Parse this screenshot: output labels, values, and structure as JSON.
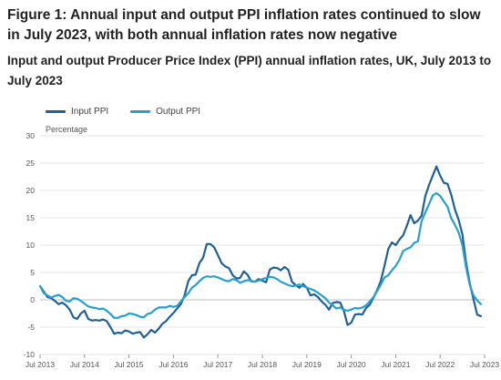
{
  "title": "Figure 1: Annual input and output PPI inflation rates continued to slow in July 2023, with both annual inflation rates now negative",
  "subtitle": "Input and output Producer Price Index (PPI) annual inflation rates, UK, July 2013 to July 2023",
  "chart_data": {
    "type": "line",
    "ylabel": "Percentage",
    "xlabel": "",
    "ylim": [
      -10,
      30
    ],
    "yticks": [
      30,
      25,
      20,
      15,
      10,
      5,
      0,
      -5,
      -10
    ],
    "xticks": [
      "Jul 2013",
      "Jul 2014",
      "Jul 2015",
      "Jul 2016",
      "Jul 2017",
      "Jul 2018",
      "Jul 2019",
      "Jul 2020",
      "Jul 2021",
      "Jul 2022",
      "Jul 2023"
    ],
    "grid": true,
    "legend": "top-left",
    "x_start": "Jul 2013",
    "x_frequency": "monthly",
    "series": [
      {
        "name": "Input PPI",
        "color": "#206095",
        "values": [
          2.5,
          1.5,
          0.5,
          0.3,
          -0.2,
          -0.8,
          -0.5,
          -1.0,
          -1.8,
          -3.2,
          -3.5,
          -2.5,
          -2.0,
          -3.5,
          -3.8,
          -3.7,
          -3.8,
          -3.6,
          -3.9,
          -5.0,
          -6.2,
          -6.0,
          -6.1,
          -5.6,
          -5.8,
          -6.2,
          -6.0,
          -5.9,
          -6.9,
          -6.3,
          -5.5,
          -6.0,
          -5.3,
          -4.4,
          -3.9,
          -3.1,
          -2.4,
          -1.6,
          -0.8,
          0.8,
          3.4,
          4.5,
          4.6,
          6.7,
          7.7,
          10.2,
          10.2,
          9.6,
          8.2,
          6.7,
          6.1,
          5.8,
          4.5,
          3.9,
          4.0,
          5.2,
          4.6,
          3.4,
          3.3,
          3.8,
          3.5,
          3.2,
          5.5,
          5.9,
          5.8,
          5.4,
          6.0,
          5.5,
          3.3,
          2.7,
          2.2,
          2.9,
          2.2,
          0.8,
          1.0,
          0.5,
          -0.3,
          -0.9,
          -1.8,
          -0.6,
          -0.4,
          -0.5,
          -2.0,
          -4.6,
          -4.2,
          -2.7,
          -2.6,
          -2.7,
          -1.5,
          -0.9,
          0.4,
          1.8,
          3.5,
          6.3,
          9.3,
          10.5,
          10.0,
          11.0,
          11.8,
          13.5,
          15.5,
          14.0,
          14.5,
          15.4,
          19.0,
          21.0,
          22.7,
          24.4,
          22.7,
          21.4,
          21.2,
          19.2,
          16.5,
          14.6,
          12.0,
          6.8,
          3.0,
          0.1,
          -2.7,
          -3.0
        ]
      },
      {
        "name": "Output PPI",
        "color": "#27a0cc",
        "values": [
          2.5,
          1.2,
          0.8,
          0.4,
          0.7,
          0.9,
          0.5,
          -0.2,
          -0.3,
          0.3,
          0.2,
          -0.2,
          -0.7,
          -1.2,
          -1.4,
          -1.5,
          -1.7,
          -1.6,
          -2.0,
          -2.6,
          -3.3,
          -3.3,
          -3.0,
          -2.9,
          -2.5,
          -2.6,
          -2.8,
          -3.1,
          -3.2,
          -2.6,
          -2.4,
          -1.8,
          -1.4,
          -1.4,
          -1.4,
          -1.1,
          -1.3,
          -1.1,
          -0.3,
          0.5,
          1.2,
          2.2,
          2.7,
          3.4,
          4.0,
          4.3,
          4.2,
          4.3,
          4.1,
          3.8,
          3.5,
          3.4,
          3.8,
          3.6,
          3.1,
          3.4,
          3.6,
          3.5,
          3.3,
          3.5,
          3.8,
          4.0,
          4.2,
          4.1,
          3.8,
          3.3,
          3.0,
          2.7,
          2.5,
          2.6,
          2.8,
          2.5,
          2.2,
          2.0,
          1.7,
          1.3,
          0.8,
          0.3,
          -0.5,
          -1.0,
          -1.6,
          -1.4,
          -1.8,
          -2.0,
          -1.8,
          -1.5,
          -1.6,
          -1.4,
          -1.0,
          -0.3,
          0.5,
          1.6,
          2.8,
          4.1,
          4.5,
          5.4,
          6.2,
          7.3,
          8.9,
          9.3,
          9.6,
          10.4,
          10.7,
          14.4,
          16.0,
          17.5,
          19.1,
          19.5,
          19.0,
          18.0,
          17.0,
          14.9,
          13.7,
          12.3,
          10.0,
          5.9,
          2.7,
          0.8,
          -0.1,
          -0.8
        ]
      }
    ]
  }
}
